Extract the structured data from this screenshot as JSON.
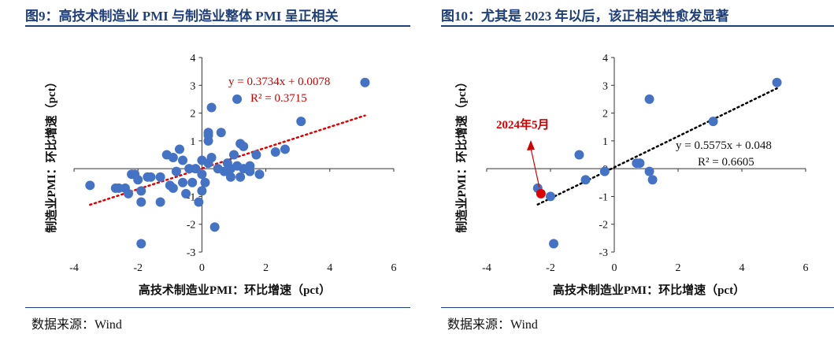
{
  "figures": [
    {
      "title": "图9：高技术制造业 PMI 与制造业整体 PMI 呈正相关",
      "source": "数据来源：Wind"
    },
    {
      "title": "图10：尤其是 2023 年以后，该正相关性愈发显著",
      "source": "数据来源：Wind"
    }
  ],
  "colors": {
    "point": "#4472c4",
    "highlight": "#e00000",
    "trend_left": "#e00000",
    "trend_right": "#000000",
    "title": "#1f3f7a"
  },
  "chart_data": [
    {
      "type": "scatter",
      "title": "",
      "xlabel": "高技术制造业PMI：环比增速（pct）",
      "ylabel": "制造业PMI：环比增速（pct）",
      "xlim": [
        -4,
        6
      ],
      "ylim": [
        -3,
        4
      ],
      "xticks": [
        "-4",
        "-2",
        "0",
        "2",
        "4",
        "6"
      ],
      "yticks": [
        "-3",
        "-2",
        "-1",
        "0",
        "1",
        "2",
        "3",
        "4"
      ],
      "grid": false,
      "points": [
        [
          -3.5,
          -0.6
        ],
        [
          -2.7,
          -0.7
        ],
        [
          -2.6,
          -0.7
        ],
        [
          -2.4,
          -0.7
        ],
        [
          -2.3,
          -0.9
        ],
        [
          -2.2,
          -0.2
        ],
        [
          -2.1,
          -0.2
        ],
        [
          -2.0,
          -0.4
        ],
        [
          -1.9,
          -0.8
        ],
        [
          -1.9,
          -1.2
        ],
        [
          -1.9,
          -2.7
        ],
        [
          -1.7,
          -0.3
        ],
        [
          -1.6,
          -0.3
        ],
        [
          -1.3,
          -0.3
        ],
        [
          -1.3,
          -1.2
        ],
        [
          -1.1,
          0.5
        ],
        [
          -1.0,
          -0.6
        ],
        [
          -0.9,
          0.4
        ],
        [
          -0.9,
          -0.7
        ],
        [
          -0.8,
          -0.1
        ],
        [
          -0.7,
          0.7
        ],
        [
          -0.6,
          -0.5
        ],
        [
          -0.6,
          0.3
        ],
        [
          -0.5,
          -0.9
        ],
        [
          -0.4,
          0.0
        ],
        [
          -0.3,
          -0.5
        ],
        [
          -0.2,
          0.0
        ],
        [
          -0.1,
          -1.2
        ],
        [
          0.0,
          -0.8
        ],
        [
          0.0,
          -0.2
        ],
        [
          0.0,
          0.3
        ],
        [
          0.1,
          -0.5
        ],
        [
          0.2,
          0.2
        ],
        [
          0.2,
          1.0
        ],
        [
          0.2,
          1.3
        ],
        [
          0.2,
          1.2
        ],
        [
          0.3,
          2.2
        ],
        [
          0.3,
          0.4
        ],
        [
          0.4,
          -2.1
        ],
        [
          0.5,
          0.0
        ],
        [
          0.6,
          1.3
        ],
        [
          0.7,
          -0.1
        ],
        [
          0.8,
          0.2
        ],
        [
          0.9,
          -0.3
        ],
        [
          0.9,
          0.0
        ],
        [
          1.0,
          0.5
        ],
        [
          1.1,
          2.5
        ],
        [
          1.1,
          0.1
        ],
        [
          1.2,
          -0.3
        ],
        [
          1.2,
          0.9
        ],
        [
          1.3,
          0.0
        ],
        [
          1.3,
          0.8
        ],
        [
          1.5,
          0.1
        ],
        [
          1.5,
          -0.1
        ],
        [
          1.7,
          0.5
        ],
        [
          1.8,
          -0.2
        ],
        [
          2.3,
          0.6
        ],
        [
          2.6,
          0.7
        ],
        [
          3.1,
          1.7
        ],
        [
          5.1,
          3.1
        ]
      ],
      "trendline": {
        "slope": 0.3734,
        "intercept": 0.0078,
        "x_range": [
          -3.5,
          5.1
        ]
      },
      "annotations": [
        "y = 0.3734x + 0.0078",
        "R² = 0.3715"
      ]
    },
    {
      "type": "scatter",
      "title": "",
      "xlabel": "高技术制造业PMI：环比增速（pct）",
      "ylabel": "制造业PMI：环比增速（pct）",
      "xlim": [
        -4,
        6
      ],
      "ylim": [
        -3,
        4
      ],
      "xticks": [
        "-4",
        "-2",
        "0",
        "2",
        "4",
        "6"
      ],
      "yticks": [
        "-3",
        "-2",
        "-1",
        "0",
        "1",
        "2",
        "3",
        "4"
      ],
      "grid": false,
      "points": [
        [
          -2.4,
          -0.7
        ],
        [
          -2.0,
          -1.0
        ],
        [
          -1.9,
          -2.7
        ],
        [
          -1.1,
          0.5
        ],
        [
          -0.9,
          -0.4
        ],
        [
          -0.3,
          -0.1
        ],
        [
          0.7,
          0.2
        ],
        [
          0.8,
          0.2
        ],
        [
          1.1,
          2.5
        ],
        [
          1.1,
          -0.1
        ],
        [
          1.2,
          -0.4
        ],
        [
          3.1,
          1.7
        ],
        [
          5.1,
          3.1
        ]
      ],
      "highlight_point": [
        -2.3,
        -0.9
      ],
      "highlight_label": "2024年5月",
      "trendline": {
        "slope": 0.5575,
        "intercept": 0.048,
        "x_range": [
          -2.4,
          5.1
        ]
      },
      "annotations": [
        "y = 0.5575x + 0.048",
        "R² = 0.6605"
      ]
    }
  ]
}
